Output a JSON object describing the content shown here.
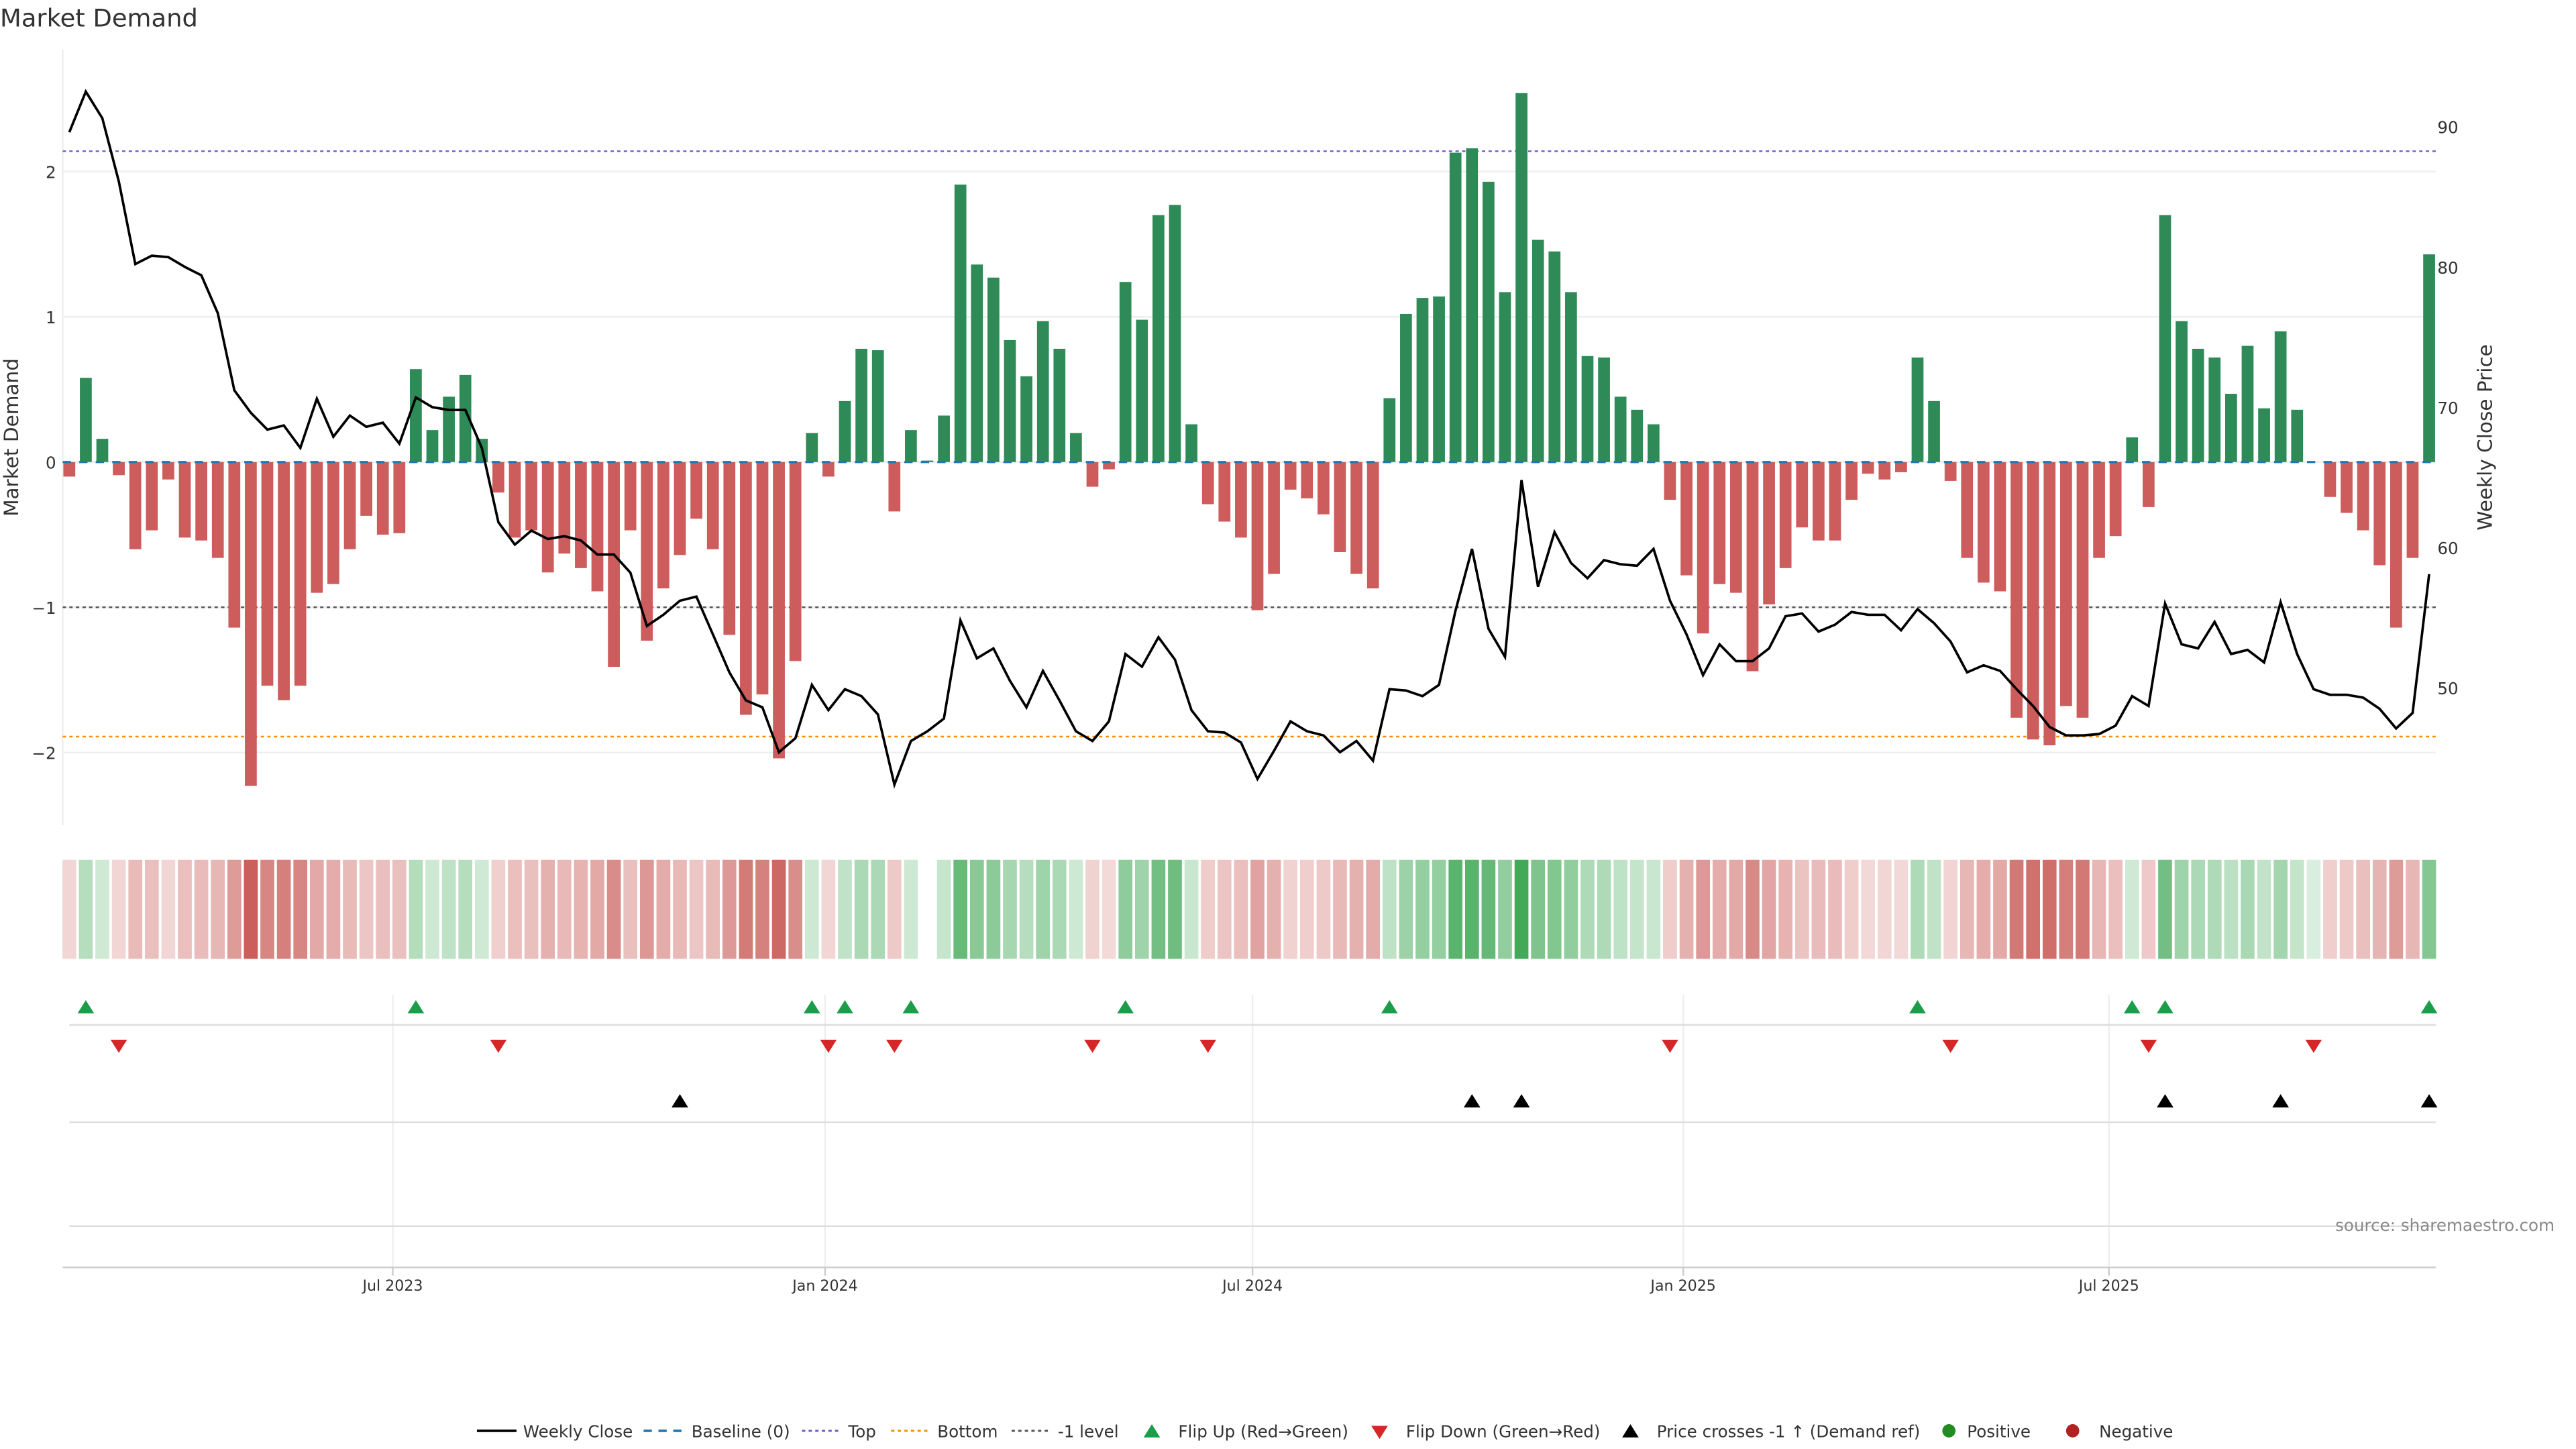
{
  "title": "Market Demand",
  "source": "source: sharemaestro.com",
  "colors": {
    "positive": "#2e8b57",
    "negative": "#cd5c5c",
    "price": "#000000",
    "baseline": "#1f77b4",
    "top": "#6a5acd",
    "bottom": "#ff8c00",
    "minus1": "#555555",
    "flip_up": "#1a9e4a",
    "flip_down": "#d62728"
  },
  "chart_data": {
    "type": "bar",
    "title": "Market Demand",
    "ylabel": "Market Demand",
    "y2label": "Weekly Close Price",
    "ylim": [
      -2.5,
      2.84
    ],
    "y2lim": [
      40.2,
      95.5
    ],
    "yticks": [
      "2",
      "1",
      "0",
      "−1",
      "−2"
    ],
    "ytick_values": [
      2,
      1,
      0,
      -1,
      -2
    ],
    "y2ticks": [
      "90",
      "80",
      "70",
      "60",
      "50"
    ],
    "y2tick_values": [
      90,
      80,
      70,
      60,
      50
    ],
    "xticks": [
      "Jul 2023",
      "Jan 2024",
      "Jul 2024",
      "Jan 2025",
      "Jul 2025"
    ],
    "xtick_week_index": [
      19.6,
      45.8,
      71.7,
      97.8,
      123.6
    ],
    "reference_lines": {
      "baseline": 0,
      "top": 2.14,
      "bottom": -1.89,
      "minus1": -1
    },
    "demand": [
      -0.1,
      0.58,
      0.16,
      -0.09,
      -0.6,
      -0.47,
      -0.12,
      -0.52,
      -0.54,
      -0.66,
      -1.14,
      -2.23,
      -1.54,
      -1.64,
      -1.54,
      -0.9,
      -0.84,
      -0.6,
      -0.37,
      -0.5,
      -0.49,
      0.64,
      0.22,
      0.45,
      0.6,
      0.16,
      -0.21,
      -0.52,
      -0.47,
      -0.76,
      -0.63,
      -0.73,
      -0.89,
      -1.41,
      -0.47,
      -1.23,
      -0.87,
      -0.64,
      -0.39,
      -0.6,
      -1.19,
      -1.74,
      -1.6,
      -2.04,
      -1.37,
      0.2,
      -0.1,
      0.42,
      0.78,
      0.77,
      -0.34,
      0.22,
      0.01,
      0.32,
      1.91,
      1.36,
      1.27,
      0.84,
      0.59,
      0.97,
      0.78,
      0.2,
      -0.17,
      -0.05,
      1.24,
      0.98,
      1.7,
      1.77,
      0.26,
      -0.29,
      -0.41,
      -0.52,
      -1.02,
      -0.77,
      -0.19,
      -0.25,
      -0.36,
      -0.62,
      -0.77,
      -0.87,
      0.44,
      1.02,
      1.13,
      1.14,
      2.13,
      2.16,
      1.93,
      1.17,
      2.54,
      1.53,
      1.45,
      1.17,
      0.73,
      0.72,
      0.45,
      0.36,
      0.26,
      -0.26,
      -0.78,
      -1.18,
      -0.84,
      -0.9,
      -1.44,
      -0.98,
      -0.73,
      -0.45,
      -0.54,
      -0.54,
      -0.26,
      -0.08,
      -0.12,
      -0.07,
      0.72,
      0.42,
      -0.13,
      -0.66,
      -0.83,
      -0.89,
      -1.76,
      -1.91,
      -1.95,
      -1.68,
      -1.76,
      -0.66,
      -0.51,
      0.17,
      -0.31,
      1.7,
      0.97,
      0.78,
      0.72,
      0.47,
      0.8,
      0.37,
      0.9,
      0.36,
      0.0,
      -0.24,
      -0.35,
      -0.47,
      -0.71,
      -1.14,
      -0.66,
      1.43
    ],
    "weekly_close": [
      89.6,
      92.5,
      90.6,
      86.1,
      80.2,
      80.8,
      80.7,
      80.0,
      79.4,
      76.7,
      71.2,
      69.6,
      68.4,
      68.7,
      67.1,
      70.6,
      67.9,
      69.4,
      68.6,
      68.9,
      67.4,
      70.7,
      70.0,
      69.8,
      69.8,
      67.1,
      61.8,
      60.2,
      61.2,
      60.6,
      60.8,
      60.5,
      59.5,
      59.5,
      58.2,
      54.4,
      55.2,
      56.2,
      56.5,
      53.8,
      51.1,
      49.1,
      48.6,
      45.4,
      46.4,
      50.2,
      48.4,
      49.9,
      49.4,
      48.1,
      43.1,
      46.2,
      46.9,
      47.8,
      54.8,
      52.1,
      52.8,
      50.5,
      48.6,
      51.2,
      49.1,
      46.9,
      46.2,
      47.6,
      52.4,
      51.5,
      53.6,
      52.0,
      48.4,
      46.9,
      46.8,
      46.1,
      43.5,
      45.5,
      47.6,
      46.9,
      46.6,
      45.4,
      46.2,
      44.8,
      49.9,
      49.8,
      49.4,
      50.2,
      55.5,
      59.9,
      54.2,
      52.2,
      64.8,
      57.2,
      61.1,
      58.9,
      57.8,
      59.1,
      58.8,
      58.7,
      59.9,
      56.2,
      53.8,
      50.9,
      53.1,
      51.9,
      51.9,
      52.8,
      55.1,
      55.3,
      54.0,
      54.5,
      55.4,
      55.2,
      55.2,
      54.1,
      55.6,
      54.6,
      53.3,
      51.1,
      51.6,
      51.2,
      49.9,
      48.7,
      47.2,
      46.6,
      46.6,
      46.7,
      47.3,
      49.4,
      48.7,
      56.0,
      53.1,
      52.8,
      54.7,
      52.4,
      52.7,
      51.8,
      56.1,
      52.4,
      49.9,
      49.5,
      49.5,
      49.3,
      48.5,
      47.1,
      48.2,
      58.1
    ],
    "heatmap_missing": [
      52
    ],
    "flip_up_index": [
      1,
      21,
      45,
      47,
      51,
      64,
      80,
      112,
      125,
      127,
      143
    ],
    "flip_down_index": [
      3,
      26,
      46,
      50,
      62,
      69,
      97,
      114,
      126,
      136
    ],
    "price_cross_index": [
      37,
      85,
      88,
      127,
      134,
      143
    ]
  },
  "legend": {
    "weekly_close": "Weekly Close",
    "baseline": "Baseline (0)",
    "top": "Top",
    "bottom": "Bottom",
    "minus1": "-1 level",
    "flip_up": "Flip Up (Red→Green)",
    "flip_down": "Flip Down (Green→Red)",
    "price_cross": "Price crosses -1 ↑ (Demand ref)",
    "positive": "Positive",
    "negative": "Negative"
  }
}
